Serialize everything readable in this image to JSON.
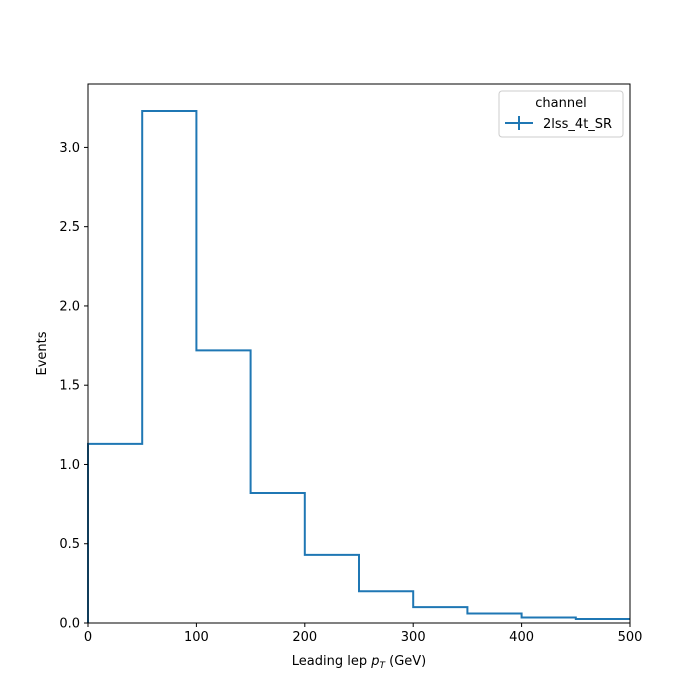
{
  "chart_data": {
    "type": "step",
    "title": "",
    "xlabel": {
      "main": "Leading lep ",
      "var": "p",
      "sub": "T",
      "unit": " (GeV)"
    },
    "ylabel": "Events",
    "xlim": [
      0,
      500
    ],
    "ylim": [
      0,
      3.4
    ],
    "xticks": [
      0,
      100,
      200,
      300,
      400,
      500
    ],
    "yticks": [
      0.0,
      0.5,
      1.0,
      1.5,
      2.0,
      2.5,
      3.0
    ],
    "ytick_labels": [
      "0.0",
      "0.5",
      "1.0",
      "1.5",
      "2.0",
      "2.5",
      "3.0"
    ],
    "bin_edges": [
      0,
      50,
      100,
      150,
      200,
      250,
      300,
      350,
      400,
      450,
      500
    ],
    "series": [
      {
        "name": "2lss_4t_SR",
        "color": "#1f77b4",
        "values": [
          1.13,
          3.23,
          1.72,
          0.82,
          0.43,
          0.2,
          0.1,
          0.06,
          0.035,
          0.025
        ]
      }
    ],
    "legend": {
      "title": "channel",
      "placement": "top-right"
    },
    "grid": false
  }
}
